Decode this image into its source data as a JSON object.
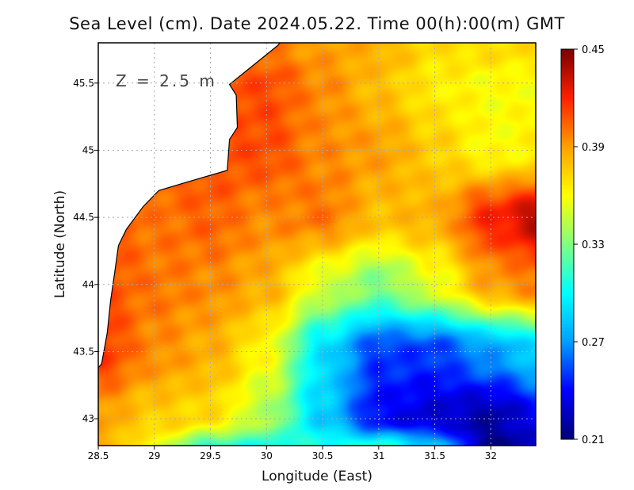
{
  "chart_data": {
    "type": "heatmap",
    "title": "Sea Level (cm). Date 2024.05.22. Time 00(h):00(m) GMT",
    "xlabel": "Longitude (East)",
    "ylabel": "Latitude (North)",
    "annotation": "Z = 2.5 m",
    "xlim": [
      28.5,
      32.4
    ],
    "ylim": [
      42.8,
      45.8
    ],
    "xticks": [
      "28.5",
      "29",
      "29.5",
      "30",
      "30.5",
      "31",
      "31.5",
      "32"
    ],
    "xtick_values": [
      28.5,
      29,
      29.5,
      30,
      30.5,
      31,
      31.5,
      32
    ],
    "yticks": [
      "45.5",
      "45",
      "44.5",
      "44",
      "43.5",
      "43"
    ],
    "ytick_values": [
      45.5,
      45,
      44.5,
      44,
      43.5,
      43
    ],
    "grid": true,
    "colorbar": {
      "range": [
        0.21,
        0.45
      ],
      "ticks": [
        "0.45",
        "0.39",
        "0.33",
        "0.27",
        "0.21"
      ],
      "tick_values": [
        0.45,
        0.39,
        0.33,
        0.27,
        0.21
      ]
    },
    "colormap": [
      "#00007a",
      "#0000ff",
      "#00a0ff",
      "#00ffff",
      "#80ff80",
      "#ffff00",
      "#ffa000",
      "#ff2000",
      "#7a0000"
    ],
    "grid_lon": [
      28.5,
      29,
      29.5,
      30,
      30.5,
      31,
      31.5,
      32,
      32.5
    ],
    "grid_lat": [
      45.75,
      45.5,
      45.0,
      44.5,
      44.0,
      43.5,
      43.0,
      42.75
    ],
    "values": [
      [
        0.4,
        0.4,
        0.4,
        0.4,
        0.39,
        0.385,
        0.37,
        0.37,
        0.37
      ],
      [
        0.41,
        0.41,
        0.41,
        0.41,
        0.395,
        0.38,
        0.365,
        0.36,
        0.36
      ],
      [
        0.41,
        0.41,
        0.41,
        0.41,
        0.395,
        0.39,
        0.375,
        0.36,
        0.365
      ],
      [
        0.41,
        0.4,
        0.405,
        0.395,
        0.4,
        0.38,
        0.385,
        0.42,
        0.44
      ],
      [
        0.41,
        0.4,
        0.395,
        0.385,
        0.35,
        0.33,
        0.355,
        0.39,
        0.4
      ],
      [
        0.415,
        0.395,
        0.385,
        0.36,
        0.29,
        0.25,
        0.25,
        0.27,
        0.29
      ],
      [
        0.39,
        0.375,
        0.37,
        0.34,
        0.285,
        0.24,
        0.23,
        0.22,
        0.24
      ],
      [
        0.385,
        0.355,
        0.3,
        0.3,
        0.31,
        0.32,
        0.29,
        0.21,
        0.23
      ]
    ],
    "coastline": [
      [
        30.12,
        45.8
      ],
      [
        30.1,
        45.78
      ],
      [
        29.67,
        45.49
      ],
      [
        29.73,
        45.41
      ],
      [
        29.74,
        45.17
      ],
      [
        29.67,
        45.08
      ],
      [
        29.65,
        44.85
      ],
      [
        29.32,
        44.77
      ],
      [
        29.04,
        44.7
      ],
      [
        28.9,
        44.58
      ],
      [
        28.75,
        44.41
      ],
      [
        28.68,
        44.29
      ],
      [
        28.65,
        44.11
      ],
      [
        28.61,
        43.88
      ],
      [
        28.58,
        43.64
      ],
      [
        28.53,
        43.41
      ],
      [
        28.5,
        43.38
      ]
    ]
  }
}
